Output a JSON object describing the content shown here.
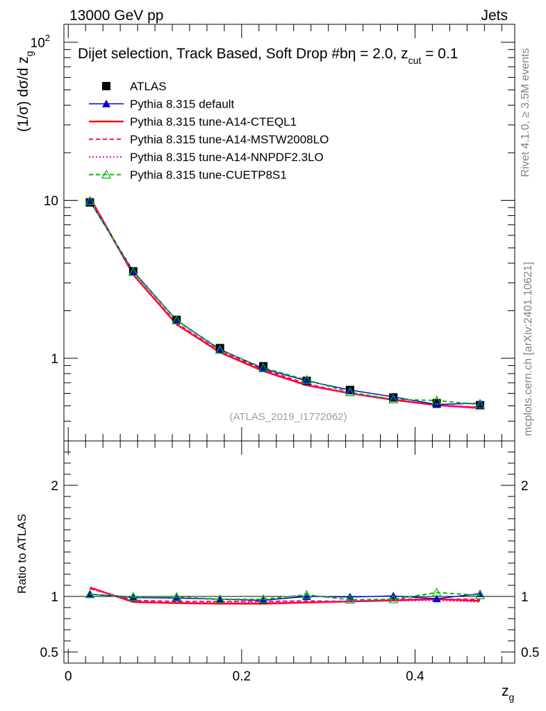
{
  "header": {
    "left_title": "13000 GeV pp",
    "right_title": "Jets"
  },
  "side_labels": {
    "rivet": "Rivet 4.1.0, ≥ 3.5M events",
    "mcplots": "mcplots.cern.ch [arXiv:2401.10621]"
  },
  "chart_data": [
    {
      "type": "line",
      "panel": "main",
      "title": "Dijet selection, Track Based, Soft Drop #b",
      "title_eta": "η = 2.0, z",
      "title_cut_sub": "cut",
      "title_tail": " = 0.1",
      "ylabel": "(1/σ) dσ/d z",
      "ylabel_sub": "g",
      "xlabel": "z",
      "xlabel_sub": "g",
      "yscale": "log",
      "xlim": [
        -0.005,
        0.515
      ],
      "ylim": [
        0.3,
        130
      ],
      "y_ticks": [
        {
          "value": 1,
          "label": "1"
        },
        {
          "value": 10,
          "label": "10"
        },
        {
          "value": 100,
          "label": "10",
          "sup": "2"
        }
      ],
      "watermark": "(ATLAS_2019_I1772062)",
      "x": [
        0.025,
        0.075,
        0.125,
        0.175,
        0.225,
        0.275,
        0.325,
        0.375,
        0.425,
        0.475
      ],
      "data": {
        "name": "ATLAS",
        "values": [
          9.7,
          3.55,
          1.75,
          1.16,
          0.89,
          0.72,
          0.63,
          0.565,
          0.52,
          0.505
        ]
      },
      "series": [
        {
          "name": "Pythia 8.315 default",
          "color": "#0000cc",
          "style": "solid",
          "marker": "triangle",
          "values": [
            9.85,
            3.56,
            1.74,
            1.14,
            0.86,
            0.72,
            0.63,
            0.57,
            0.51,
            0.52
          ]
        },
        {
          "name": "Pythia 8.315 tune-A14-CTEQL1",
          "color": "#ff0000",
          "style": "solid-thick",
          "marker": "none",
          "values": [
            10.45,
            3.38,
            1.64,
            1.09,
            0.83,
            0.675,
            0.6,
            0.545,
            0.505,
            0.485
          ]
        },
        {
          "name": "Pythia 8.315 tune-A14-MSTW2008LO",
          "color": "#ff0066",
          "style": "dashed",
          "marker": "none",
          "values": [
            10.4,
            3.42,
            1.67,
            1.11,
            0.85,
            0.69,
            0.6,
            0.55,
            0.505,
            0.49
          ]
        },
        {
          "name": "Pythia 8.315 tune-A14-NNPDF2.3LO",
          "color": "#ff00cc",
          "style": "dotted",
          "marker": "none",
          "values": [
            10.4,
            3.4,
            1.65,
            1.1,
            0.84,
            0.68,
            0.6,
            0.545,
            0.505,
            0.48
          ]
        },
        {
          "name": "Pythia 8.315 tune-CUETP8S1",
          "color": "#00bb00",
          "style": "dashed",
          "marker": "open-triangle",
          "values": [
            9.9,
            3.52,
            1.74,
            1.13,
            0.87,
            0.73,
            0.61,
            0.55,
            0.54,
            0.51
          ]
        }
      ]
    },
    {
      "type": "line",
      "panel": "ratio",
      "ylabel": "Ratio to ATLAS",
      "ylim": [
        0.4,
        2.4
      ],
      "y_ticks": [
        {
          "value": 0.5,
          "label": "0.5"
        },
        {
          "value": 1,
          "label": "1"
        },
        {
          "value": 2,
          "label": "2"
        }
      ],
      "x_ticks": [
        {
          "value": 0,
          "label": "0"
        },
        {
          "value": 0.2,
          "label": "0.2"
        },
        {
          "value": 0.4,
          "label": "0.4"
        }
      ],
      "x": [
        0.025,
        0.075,
        0.125,
        0.175,
        0.225,
        0.275,
        0.325,
        0.375,
        0.425,
        0.475
      ],
      "series": [
        {
          "name": "Pythia 8.315 default",
          "color": "#0000cc",
          "style": "solid",
          "marker": "triangle",
          "values": [
            1.02,
            0.99,
            0.985,
            0.975,
            0.965,
            1.0,
            0.995,
            1.005,
            0.98,
            1.025
          ]
        },
        {
          "name": "Pythia 8.315 tune-A14-CTEQL1",
          "color": "#ff0000",
          "style": "solid-thick",
          "marker": "none",
          "values": [
            1.08,
            0.95,
            0.94,
            0.935,
            0.935,
            0.945,
            0.955,
            0.965,
            0.975,
            0.96
          ]
        },
        {
          "name": "Pythia 8.315 tune-A14-MSTW2008LO",
          "color": "#ff0066",
          "style": "dashed",
          "marker": "none",
          "values": [
            1.07,
            0.965,
            0.955,
            0.955,
            0.955,
            0.96,
            0.955,
            0.975,
            0.975,
            0.975
          ]
        },
        {
          "name": "Pythia 8.315 tune-A14-NNPDF2.3LO",
          "color": "#ff00cc",
          "style": "dotted",
          "marker": "none",
          "values": [
            1.07,
            0.96,
            0.945,
            0.945,
            0.945,
            0.95,
            0.955,
            0.96,
            0.965,
            0.95
          ]
        },
        {
          "name": "Pythia 8.315 tune-CUETP8S1",
          "color": "#00bb00",
          "style": "dashed",
          "marker": "open-triangle",
          "values": [
            1.02,
            0.995,
            0.995,
            0.975,
            0.975,
            1.015,
            0.97,
            0.975,
            1.035,
            1.01
          ]
        }
      ]
    }
  ]
}
